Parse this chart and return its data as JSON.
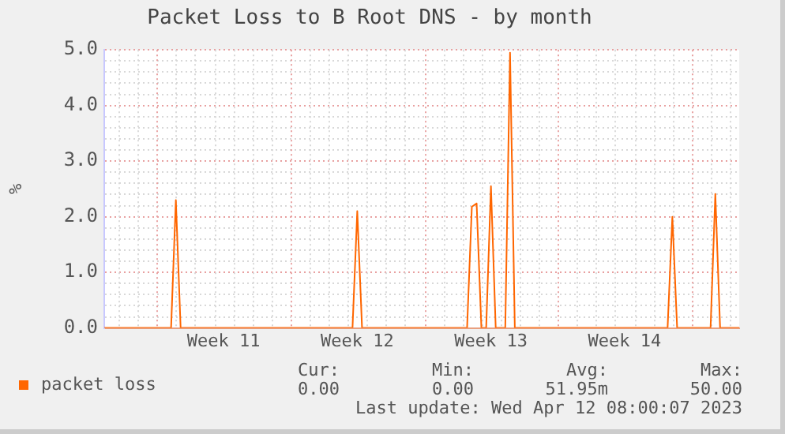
{
  "chart_data": {
    "type": "line",
    "title": "Packet Loss to B Root DNS - by month",
    "ylabel": "%",
    "categories": [
      null,
      null,
      null,
      null,
      null,
      null,
      null,
      null,
      null,
      null,
      null,
      null,
      null,
      null,
      null,
      null,
      null,
      null,
      null,
      null,
      null,
      null,
      null,
      null,
      null,
      "Week 11",
      null,
      null,
      null,
      null,
      null,
      null,
      null,
      null,
      null,
      null,
      null,
      null,
      null,
      null,
      null,
      null,
      null,
      null,
      null,
      null,
      null,
      null,
      null,
      null,
      null,
      null,
      null,
      "Week 12",
      null,
      null,
      null,
      null,
      null,
      null,
      null,
      null,
      null,
      null,
      null,
      null,
      null,
      null,
      null,
      null,
      null,
      null,
      null,
      null,
      null,
      null,
      null,
      null,
      null,
      null,
      null,
      "Week 13",
      null,
      null,
      null,
      null,
      null,
      null,
      null,
      null,
      null,
      null,
      null,
      null,
      null,
      null,
      null,
      null,
      null,
      null,
      null,
      null,
      null,
      null,
      null,
      null,
      null,
      null,
      null,
      "Week 14",
      null,
      null,
      null,
      null,
      null,
      null,
      null,
      null,
      null,
      null,
      null,
      null,
      null,
      null,
      null,
      null,
      null,
      null,
      null,
      null,
      null,
      null,
      null,
      null
    ],
    "series": [
      {
        "name": "packet loss",
        "color": "#ff6600",
        "values": [
          0,
          0,
          0,
          0,
          0,
          0,
          0,
          0,
          0,
          0,
          0,
          0,
          0,
          0,
          0,
          2.3,
          0,
          0,
          0,
          0,
          0,
          0,
          0,
          0,
          0,
          0,
          0,
          0,
          0,
          0,
          0,
          0,
          0,
          0,
          0,
          0,
          0,
          0,
          0,
          0,
          0,
          0,
          0,
          0,
          0,
          0,
          0,
          0,
          0,
          0,
          0,
          0,
          0,
          2.1,
          0,
          0,
          0,
          0,
          0,
          0,
          0,
          0,
          0,
          0,
          0,
          0,
          0,
          0,
          0,
          0,
          0,
          0,
          0,
          0,
          0,
          0,
          0,
          2.18,
          2.24,
          0,
          0,
          2.55,
          0,
          0,
          0,
          4.95,
          0,
          0,
          0,
          0,
          0,
          0,
          0,
          0,
          0,
          0,
          0,
          0,
          0,
          0,
          0,
          0,
          0,
          0,
          0,
          0,
          0,
          0,
          0,
          0,
          0,
          0,
          0,
          0,
          0,
          0,
          0,
          0,
          0,
          2.0,
          0,
          0,
          0,
          0,
          0,
          0,
          0,
          0,
          2.41,
          0,
          0,
          0,
          0,
          0
        ]
      }
    ],
    "ylim": [
      0,
      5
    ],
    "yticks": [
      {
        "value": 0,
        "label": "0.0"
      },
      {
        "value": 0.2,
        "label": null
      },
      {
        "value": 0.4,
        "label": null
      },
      {
        "value": 0.6,
        "label": null
      },
      {
        "value": 0.8,
        "label": null
      },
      {
        "value": 1,
        "label": "1.0"
      },
      {
        "value": 1.2,
        "label": null
      },
      {
        "value": 1.4,
        "label": null
      },
      {
        "value": 1.6,
        "label": null
      },
      {
        "value": 1.8,
        "label": null
      },
      {
        "value": 2,
        "label": "2.0"
      },
      {
        "value": 2.2,
        "label": null
      },
      {
        "value": 2.4,
        "label": null
      },
      {
        "value": 2.6,
        "label": null
      },
      {
        "value": 2.8,
        "label": null
      },
      {
        "value": 3,
        "label": "3.0"
      },
      {
        "value": 3.2,
        "label": null
      },
      {
        "value": 3.4,
        "label": null
      },
      {
        "value": 3.6,
        "label": null
      },
      {
        "value": 3.8,
        "label": null
      },
      {
        "value": 4,
        "label": "4.0"
      },
      {
        "value": 4.2,
        "label": null
      },
      {
        "value": 4.4,
        "label": null
      },
      {
        "value": 4.6,
        "label": null
      },
      {
        "value": 4.8,
        "label": null
      },
      {
        "value": 5,
        "label": "5.0"
      }
    ],
    "grid": true,
    "legend": "bottom left",
    "marker": "none",
    "line_style": "solid",
    "annotations": [
      "Cur:",
      "Min:",
      "Avg:",
      "Max:",
      "0.00",
      "0.00",
      "51.95m",
      "50.00",
      "Last update: Wed Apr 12 08:00:07 2023"
    ]
  }
}
